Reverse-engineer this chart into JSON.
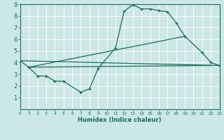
{
  "xlabel": "Humidex (Indice chaleur)",
  "ylabel": "",
  "background_color": "#cce8e6",
  "grid_color": "#ffffff",
  "line_color": "#1a6b5a",
  "xlim": [
    0,
    23
  ],
  "ylim": [
    0,
    9
  ],
  "xticks": [
    0,
    1,
    2,
    3,
    4,
    5,
    6,
    7,
    8,
    9,
    10,
    11,
    12,
    13,
    14,
    15,
    16,
    17,
    18,
    19,
    20,
    21,
    22,
    23
  ],
  "yticks": [
    1,
    2,
    3,
    4,
    5,
    6,
    7,
    8,
    9
  ],
  "curve": {
    "x": [
      0,
      1,
      2,
      3,
      4,
      5,
      7,
      8,
      9,
      11,
      12,
      13,
      14,
      15,
      16,
      17,
      18,
      19,
      21,
      22,
      23
    ],
    "y": [
      4.15,
      3.6,
      2.85,
      2.85,
      2.4,
      2.4,
      1.45,
      1.75,
      3.5,
      5.25,
      8.4,
      8.95,
      8.6,
      8.6,
      8.45,
      8.35,
      7.4,
      6.25,
      4.85,
      4.0,
      3.75
    ]
  },
  "straight_lines": [
    {
      "x": [
        0,
        23
      ],
      "y": [
        4.15,
        3.75
      ]
    },
    {
      "x": [
        1,
        22
      ],
      "y": [
        3.6,
        3.75
      ]
    },
    {
      "x": [
        1,
        19
      ],
      "y": [
        3.6,
        6.25
      ]
    }
  ]
}
